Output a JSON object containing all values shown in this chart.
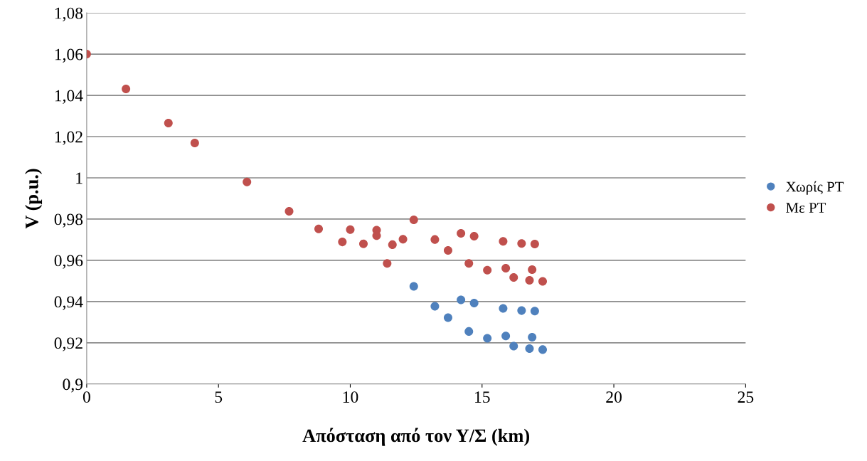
{
  "chart_data": {
    "type": "scatter",
    "xlabel": "Απόσταση από τον Υ/Σ (km)",
    "ylabel": "V (p.u.)",
    "xlim": [
      0,
      25
    ],
    "xticks": [
      0,
      5,
      10,
      15,
      20,
      25
    ],
    "ylim": [
      0.9,
      1.08
    ],
    "yticks": [
      {
        "value": 0.9,
        "label": "0,9"
      },
      {
        "value": 0.92,
        "label": "0,92"
      },
      {
        "value": 0.94,
        "label": "0,94"
      },
      {
        "value": 0.96,
        "label": "0,96"
      },
      {
        "value": 0.98,
        "label": "0,98"
      },
      {
        "value": 1,
        "label": "1"
      },
      {
        "value": 1.02,
        "label": "1,02"
      },
      {
        "value": 1.04,
        "label": "1,04"
      },
      {
        "value": 1.06,
        "label": "1,06"
      },
      {
        "value": 1.08,
        "label": "1,08"
      }
    ],
    "grid": "y",
    "legend": "right",
    "marker": "circle",
    "series": [
      {
        "name": "Χωρίς PT",
        "color": "#4f81bd",
        "x": [
          12.41,
          13.21,
          13.71,
          14.2,
          14.7,
          14.5,
          15.2,
          15.8,
          15.9,
          16.2,
          16.5,
          17.0,
          16.9,
          16.8,
          17.3
        ],
        "values": [
          0.9474,
          0.9377,
          0.9322,
          0.9408,
          0.9393,
          0.9255,
          0.9222,
          0.9367,
          0.9233,
          0.9184,
          0.9356,
          0.9354,
          0.9227,
          0.9172,
          0.9167
        ]
      },
      {
        "name": "Με PT",
        "color": "#c0504d",
        "x": [
          0,
          1.49,
          3.1,
          4.1,
          6.08,
          7.68,
          8.8,
          10.0,
          9.7,
          10.5,
          11.0,
          11.0,
          11.6,
          12.0,
          11.4,
          12.41,
          13.21,
          13.71,
          14.2,
          14.7,
          14.5,
          15.2,
          15.8,
          15.9,
          16.2,
          16.5,
          17.0,
          16.9,
          16.8,
          17.3
        ],
        "values": [
          1.06,
          1.0431,
          1.0266,
          1.0169,
          0.998,
          0.9838,
          0.9752,
          0.9749,
          0.9689,
          0.968,
          0.9746,
          0.972,
          0.9676,
          0.9702,
          0.9585,
          0.9796,
          0.9701,
          0.9648,
          0.9731,
          0.9717,
          0.9585,
          0.9552,
          0.9692,
          0.9562,
          0.9517,
          0.9682,
          0.9679,
          0.9555,
          0.9503,
          0.9498
        ]
      }
    ]
  }
}
